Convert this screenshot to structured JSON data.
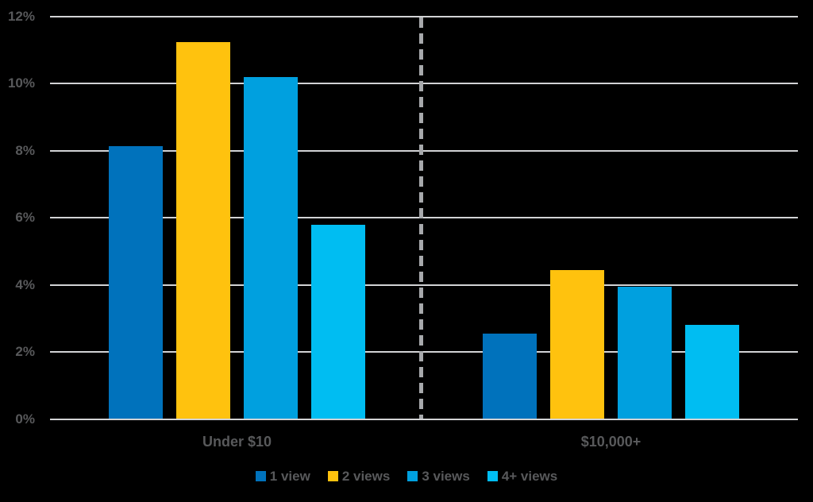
{
  "chart_data": {
    "type": "bar",
    "title": "",
    "xlabel": "",
    "ylabel": "",
    "categories": [
      "Under $10",
      "$10,000+"
    ],
    "series": [
      {
        "name": "1 view",
        "color": "#0072BC",
        "values": [
          8.15,
          2.55
        ]
      },
      {
        "name": "2 views",
        "color": "#FFC20E",
        "values": [
          11.25,
          4.45
        ]
      },
      {
        "name": "3 views",
        "color": "#00A0DF",
        "values": [
          10.2,
          3.95
        ]
      },
      {
        "name": "4+ views",
        "color": "#00BDF2",
        "values": [
          5.8,
          2.8
        ]
      }
    ],
    "ylim": [
      0,
      12
    ],
    "ytick_step": 2,
    "ytick_labels": [
      "0%",
      "2%",
      "4%",
      "6%",
      "8%",
      "10%",
      "12%"
    ],
    "grid": true,
    "legend_position": "bottom",
    "separator": "vertical dashed line between category groups"
  },
  "colors": {
    "background": "#000000",
    "grid_line": "#D2D3D5",
    "separator_line": "#A7A9AC",
    "text": "#58595B"
  }
}
